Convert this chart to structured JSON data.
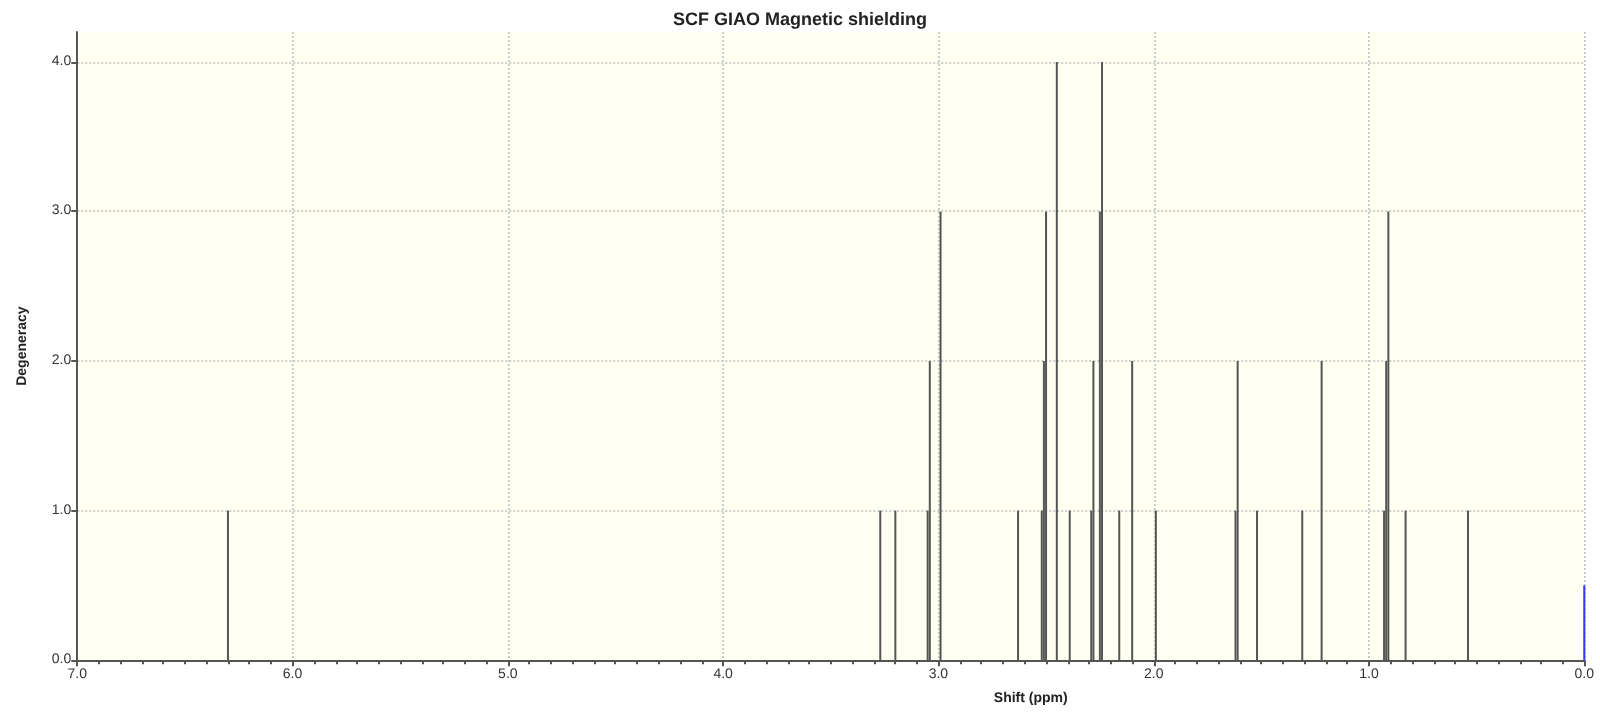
{
  "chart_data": {
    "type": "bar",
    "title": "SCF GIAO Magnetic shielding",
    "xlabel": "Shift (ppm)",
    "ylabel": "Degeneracy",
    "xlim": [
      7,
      0
    ],
    "xticks": [
      {
        "value": 7,
        "label": "7.0"
      },
      {
        "value": 6,
        "label": "6.0"
      },
      {
        "value": 5,
        "label": "5.0"
      },
      {
        "value": 4,
        "label": "4.0"
      },
      {
        "value": 3,
        "label": "3.0"
      },
      {
        "value": 2,
        "label": "2.0"
      },
      {
        "value": 1,
        "label": "1.0"
      },
      {
        "value": 0,
        "label": "0.0"
      }
    ],
    "ylim": [
      0,
      4.2
    ],
    "yticks": [
      {
        "value": 0,
        "label": "0.0"
      },
      {
        "value": 1,
        "label": "1.0"
      },
      {
        "value": 2,
        "label": "2.0"
      },
      {
        "value": 3,
        "label": "3.0"
      },
      {
        "value": 4,
        "label": "4.0"
      }
    ],
    "grid": true,
    "series": [
      {
        "color": "#555555",
        "x": [
          6.3,
          3.27,
          3.2,
          3.05,
          3.04,
          2.99,
          2.63,
          2.52,
          2.51,
          2.5,
          2.45,
          2.39,
          2.29,
          2.28,
          2.25,
          2.24,
          2.16,
          2.1,
          1.99,
          1.62,
          1.61,
          1.52,
          1.31,
          1.22,
          0.93,
          0.92,
          0.91,
          0.83,
          0.54
        ],
        "values": [
          1,
          1,
          1,
          1,
          2,
          3,
          1,
          1,
          2,
          3,
          4,
          1,
          1,
          2,
          3,
          4,
          1,
          2,
          1,
          1,
          2,
          1,
          1,
          2,
          1,
          2,
          3,
          1,
          1
        ]
      },
      {
        "color": "#3333ff",
        "x": [
          0
        ],
        "values": [
          0.5
        ]
      }
    ]
  }
}
